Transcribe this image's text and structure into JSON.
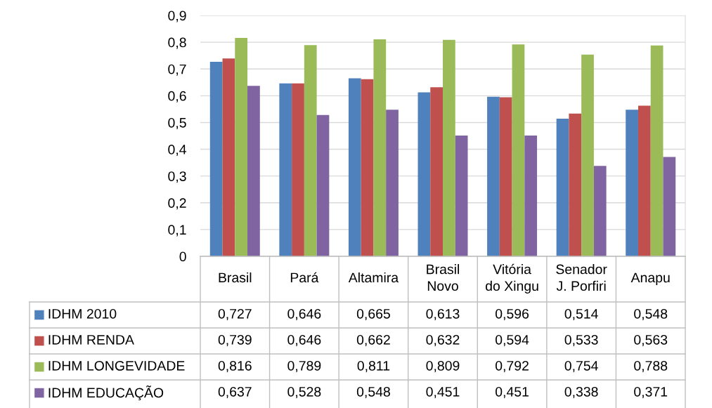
{
  "chart_data": {
    "type": "bar",
    "categories": [
      "Brasil",
      "Pará",
      "Altamira",
      "Brasil Novo",
      "Vitória do Xingu",
      "Senador J. Porfiri",
      "Anapu"
    ],
    "series": [
      {
        "name": "IDHM 2010",
        "color": "#4f81bd",
        "values": [
          0.727,
          0.646,
          0.665,
          0.613,
          0.596,
          0.514,
          0.548
        ],
        "value_labels": [
          "0,727",
          "0,646",
          "0,665",
          "0,613",
          "0,596",
          "0,514",
          "0,548"
        ]
      },
      {
        "name": "IDHM RENDA",
        "color": "#c0504d",
        "values": [
          0.739,
          0.646,
          0.662,
          0.632,
          0.594,
          0.533,
          0.563
        ],
        "value_labels": [
          "0,739",
          "0,646",
          "0,662",
          "0,632",
          "0,594",
          "0,533",
          "0,563"
        ]
      },
      {
        "name": "IDHM LONGEVIDADE",
        "color": "#9bbb59",
        "values": [
          0.816,
          0.789,
          0.811,
          0.809,
          0.792,
          0.754,
          0.788
        ],
        "value_labels": [
          "0,816",
          "0,789",
          "0,811",
          "0,809",
          "0,792",
          "0,754",
          "0,788"
        ]
      },
      {
        "name": "IDHM EDUCAÇÃO",
        "color": "#8064a2",
        "values": [
          0.637,
          0.528,
          0.548,
          0.451,
          0.451,
          0.338,
          0.371
        ],
        "value_labels": [
          "0,637",
          "0,528",
          "0,548",
          "0,451",
          "0,451",
          "0,338",
          "0,371"
        ]
      }
    ],
    "ylim": [
      0,
      0.9
    ],
    "yticks": [
      {
        "value": 0,
        "label": "0"
      },
      {
        "value": 0.1,
        "label": "0,1"
      },
      {
        "value": 0.2,
        "label": "0,2"
      },
      {
        "value": 0.3,
        "label": "0,3"
      },
      {
        "value": 0.4,
        "label": "0,4"
      },
      {
        "value": 0.5,
        "label": "0,5"
      },
      {
        "value": 0.6,
        "label": "0,6"
      },
      {
        "value": 0.7,
        "label": "0,7"
      },
      {
        "value": 0.8,
        "label": "0,8"
      },
      {
        "value": 0.9,
        "label": "0,9"
      }
    ],
    "grid": "y",
    "legend": "bottom"
  }
}
